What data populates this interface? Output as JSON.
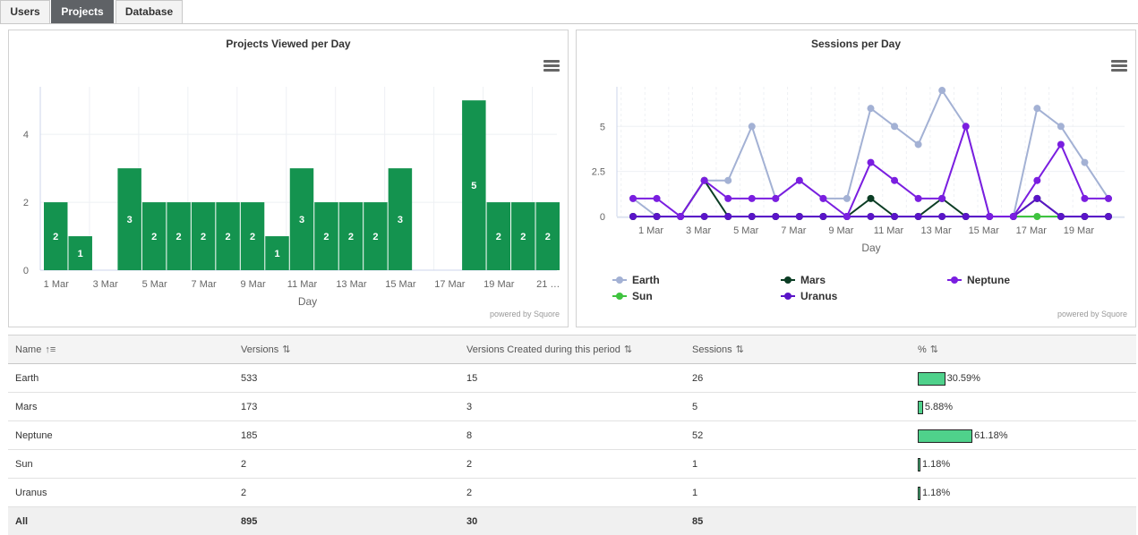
{
  "tabs": [
    {
      "label": "Users",
      "active": false
    },
    {
      "label": "Projects",
      "active": true
    },
    {
      "label": "Database",
      "active": false
    }
  ],
  "left_chart": {
    "title": "Projects Viewed per Day",
    "credit": "powered by Squore",
    "menu_icon": "hamburger-menu-icon"
  },
  "right_chart": {
    "title": "Sessions per Day",
    "credit": "powered by Squore",
    "menu_icon": "hamburger-menu-icon"
  },
  "chart_data": [
    {
      "type": "bar",
      "title": "Projects Viewed per Day",
      "xlabel": "Day",
      "ylabel": "",
      "ylim": [
        0,
        5
      ],
      "yticks": [
        0,
        2,
        4
      ],
      "grid": true,
      "categories": [
        "1 Mar",
        "2 Mar",
        "3 Mar",
        "4 Mar",
        "5 Mar",
        "6 Mar",
        "7 Mar",
        "8 Mar",
        "9 Mar",
        "10 Mar",
        "11 Mar",
        "12 Mar",
        "13 Mar",
        "14 Mar",
        "15 Mar",
        "16 Mar",
        "17 Mar",
        "18 Mar",
        "19 Mar",
        "20 Mar",
        "21 Mar"
      ],
      "xtick_labels": [
        "1 Mar",
        "3 Mar",
        "5 Mar",
        "7 Mar",
        "9 Mar",
        "11 Mar",
        "13 Mar",
        "15 Mar",
        "17 Mar",
        "19 Mar",
        "21 …"
      ],
      "values": [
        2,
        1,
        0,
        3,
        2,
        2,
        2,
        2,
        2,
        1,
        3,
        2,
        2,
        2,
        3,
        0,
        0,
        5,
        2,
        2,
        2
      ],
      "color": "#14934f"
    },
    {
      "type": "line",
      "title": "Sessions per Day",
      "xlabel": "Day",
      "ylabel": "",
      "ylim": [
        0,
        7
      ],
      "yticks": [
        0,
        2.5,
        5
      ],
      "grid": true,
      "legend": "bottom",
      "x": [
        "1 Mar",
        "2 Mar",
        "3 Mar",
        "4 Mar",
        "5 Mar",
        "6 Mar",
        "7 Mar",
        "8 Mar",
        "9 Mar",
        "10 Mar",
        "11 Mar",
        "12 Mar",
        "13 Mar",
        "14 Mar",
        "15 Mar",
        "16 Mar",
        "17 Mar",
        "18 Mar",
        "19 Mar",
        "20 Mar",
        "21 Mar"
      ],
      "xtick_labels": [
        "1 Mar",
        "3 Mar",
        "5 Mar",
        "7 Mar",
        "9 Mar",
        "11 Mar",
        "13 Mar",
        "15 Mar",
        "17 Mar",
        "19 Mar"
      ],
      "series": [
        {
          "name": "Earth",
          "color": "#a3b1d4",
          "values": [
            1,
            0,
            0,
            2,
            2,
            5,
            1,
            2,
            1,
            1,
            6,
            5,
            4,
            7,
            5,
            0,
            0,
            6,
            5,
            3,
            1
          ]
        },
        {
          "name": "Mars",
          "color": "#0b3d24",
          "values": [
            0,
            0,
            0,
            2,
            0,
            0,
            0,
            0,
            0,
            0,
            1,
            0,
            0,
            1,
            0,
            0,
            0,
            1,
            0,
            0,
            0
          ]
        },
        {
          "name": "Neptune",
          "color": "#7a1ee0",
          "values": [
            1,
            1,
            0,
            2,
            1,
            1,
            1,
            2,
            1,
            0,
            3,
            2,
            1,
            1,
            5,
            0,
            0,
            2,
            4,
            1,
            1
          ]
        },
        {
          "name": "Sun",
          "color": "#3fc33f",
          "values": [
            0,
            0,
            0,
            0,
            0,
            0,
            0,
            0,
            0,
            0,
            0,
            0,
            0,
            0,
            0,
            0,
            0,
            0,
            0,
            0,
            0
          ]
        },
        {
          "name": "Uranus",
          "color": "#5a14c8",
          "values": [
            0,
            0,
            0,
            0,
            0,
            0,
            0,
            0,
            0,
            0,
            0,
            0,
            0,
            0,
            0,
            0,
            0,
            1,
            0,
            0,
            0
          ]
        }
      ]
    }
  ],
  "table": {
    "columns": [
      {
        "label": "Name",
        "sort_icon": "sort-asc-icon"
      },
      {
        "label": "Versions",
        "sort_icon": "sort-icon"
      },
      {
        "label": "Versions Created during this period",
        "sort_icon": "sort-icon"
      },
      {
        "label": "Sessions",
        "sort_icon": "sort-icon"
      },
      {
        "label": "%",
        "sort_icon": "sort-icon"
      }
    ],
    "rows": [
      {
        "name": "Earth",
        "versions": "533",
        "created": "15",
        "sessions": "26",
        "pct": "30.59%",
        "pct_value": 30.59
      },
      {
        "name": "Mars",
        "versions": "173",
        "created": "3",
        "sessions": "5",
        "pct": "5.88%",
        "pct_value": 5.88
      },
      {
        "name": "Neptune",
        "versions": "185",
        "created": "8",
        "sessions": "52",
        "pct": "61.18%",
        "pct_value": 61.18
      },
      {
        "name": "Sun",
        "versions": "2",
        "created": "2",
        "sessions": "1",
        "pct": "1.18%",
        "pct_value": 1.18
      },
      {
        "name": "Uranus",
        "versions": "2",
        "created": "2",
        "sessions": "1",
        "pct": "1.18%",
        "pct_value": 1.18
      }
    ],
    "footer": {
      "name": "All",
      "versions": "895",
      "created": "30",
      "sessions": "85"
    }
  }
}
